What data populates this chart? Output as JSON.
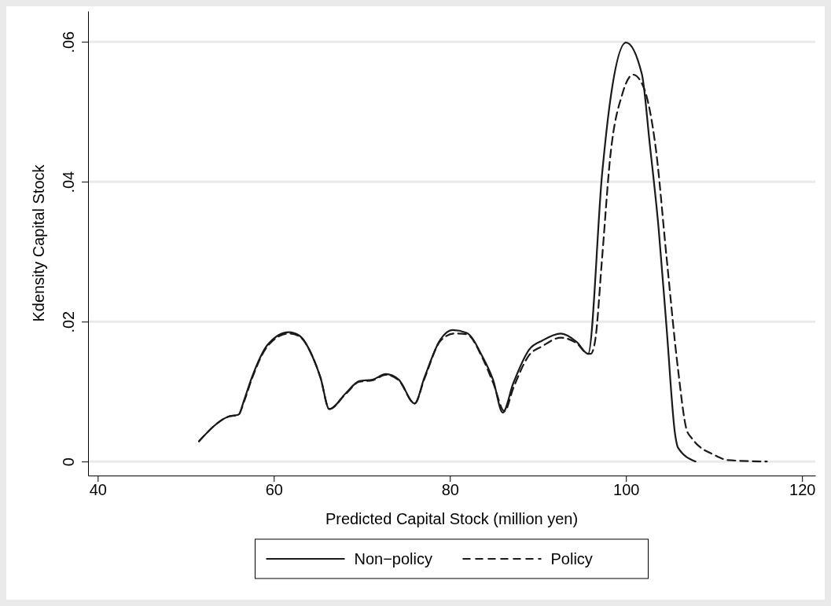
{
  "chart_data": {
    "type": "line",
    "xlabel": "Predicted Capital Stock (million yen)",
    "ylabel": "Kdensity Capital Stock",
    "xlim": [
      38.9,
      121.5
    ],
    "ylim": [
      -0.002,
      0.0644
    ],
    "xticks": [
      40,
      60,
      80,
      100,
      120
    ],
    "yticks": [
      {
        "value": 0,
        "label": "0"
      },
      {
        "value": 0.02,
        "label": ".02"
      },
      {
        "value": 0.04,
        "label": ".04"
      },
      {
        "value": 0.06,
        "label": ".06"
      }
    ],
    "grid": "y",
    "legend": "bottom",
    "marker": "none",
    "series": [
      {
        "name": "Non−policy",
        "color": "#1a1a1a",
        "line_style": "solid",
        "x": [
          51.5,
          54.8,
          56.0,
          56.6,
          57.5,
          59.3,
          61.7,
          62.9,
          64.4,
          65.3,
          66.3,
          68.2,
          69.7,
          71.2,
          72.7,
          74.2,
          76.0,
          77.1,
          78.9,
          80.3,
          81.9,
          83.7,
          84.9,
          86.0,
          87.2,
          89.0,
          90.5,
          92.6,
          94.4,
          95.7,
          97.3,
          98.2,
          100.0,
          101.8,
          102.7,
          103.7,
          104.6,
          105.6,
          105.9,
          107.9
        ],
        "values": [
          0.0029,
          0.0064,
          0.0067,
          0.0087,
          0.012,
          0.0167,
          0.0185,
          0.018,
          0.015,
          0.012,
          0.0075,
          0.0098,
          0.0115,
          0.0117,
          0.0125,
          0.0117,
          0.0083,
          0.012,
          0.0174,
          0.0188,
          0.0184,
          0.015,
          0.0117,
          0.007,
          0.0112,
          0.016,
          0.0173,
          0.0183,
          0.0171,
          0.0154,
          0.0413,
          0.0515,
          0.0599,
          0.0554,
          0.0454,
          0.0334,
          0.0193,
          0.0037,
          0.002,
          0
        ]
      },
      {
        "name": "Policy",
        "color": "#1a1a1a",
        "line_style": "dashed",
        "x": [
          51.5,
          54.8,
          56.0,
          56.6,
          57.5,
          59.3,
          61.7,
          62.9,
          64.4,
          65.3,
          66.3,
          68.2,
          69.7,
          71.2,
          72.7,
          74.2,
          76.0,
          77.1,
          78.9,
          80.5,
          81.9,
          83.7,
          84.9,
          86.2,
          87.2,
          89.0,
          90.5,
          92.6,
          94.4,
          95.7,
          96.0,
          96.5,
          97.3,
          98.2,
          99.6,
          100.8,
          102.0,
          103.4,
          104.6,
          105.9,
          106.9,
          107.5,
          110.1,
          111.6,
          116.0
        ],
        "values": [
          0.0029,
          0.0064,
          0.0067,
          0.0085,
          0.0118,
          0.0165,
          0.0183,
          0.0179,
          0.015,
          0.012,
          0.0075,
          0.0097,
          0.0114,
          0.0116,
          0.0124,
          0.0116,
          0.0083,
          0.0118,
          0.0172,
          0.0183,
          0.0182,
          0.0148,
          0.0113,
          0.0072,
          0.0105,
          0.0152,
          0.0165,
          0.0177,
          0.0169,
          0.0154,
          0.0154,
          0.0173,
          0.0293,
          0.0434,
          0.0526,
          0.0553,
          0.0535,
          0.0446,
          0.0293,
          0.0133,
          0.0045,
          0.0033,
          0.0009,
          0.0002,
          0
        ]
      }
    ]
  }
}
